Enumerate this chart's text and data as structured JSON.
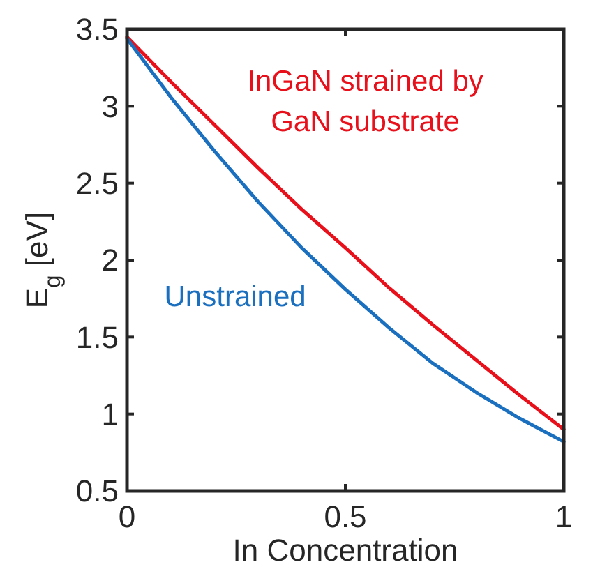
{
  "chart_data": {
    "type": "line",
    "xlabel": "In Concentration",
    "ylabel": "E$_{g}$ [eV]",
    "x": [
      0,
      0.1,
      0.2,
      0.3,
      0.4,
      0.5,
      0.6,
      0.7,
      0.8,
      0.9,
      1
    ],
    "xlim": [
      0,
      1
    ],
    "xticks": [
      0,
      0.5,
      1
    ],
    "ylim": [
      0.5,
      3.5
    ],
    "yticks": [
      0.5,
      1,
      1.5,
      2,
      2.5,
      3,
      3.5
    ],
    "grid": false,
    "marker": "none",
    "line_style": "solid",
    "series": [
      {
        "name": "InGaN strained by GaN substrate",
        "color": "#e8101a",
        "values": [
          3.45,
          3.16,
          2.88,
          2.6,
          2.33,
          2.08,
          1.82,
          1.58,
          1.35,
          1.12,
          0.9
        ]
      },
      {
        "name": "Unstrained",
        "color": "#1a6fbf",
        "values": [
          3.44,
          3.06,
          2.71,
          2.38,
          2.08,
          1.81,
          1.56,
          1.33,
          1.14,
          0.97,
          0.82
        ]
      }
    ]
  }
}
